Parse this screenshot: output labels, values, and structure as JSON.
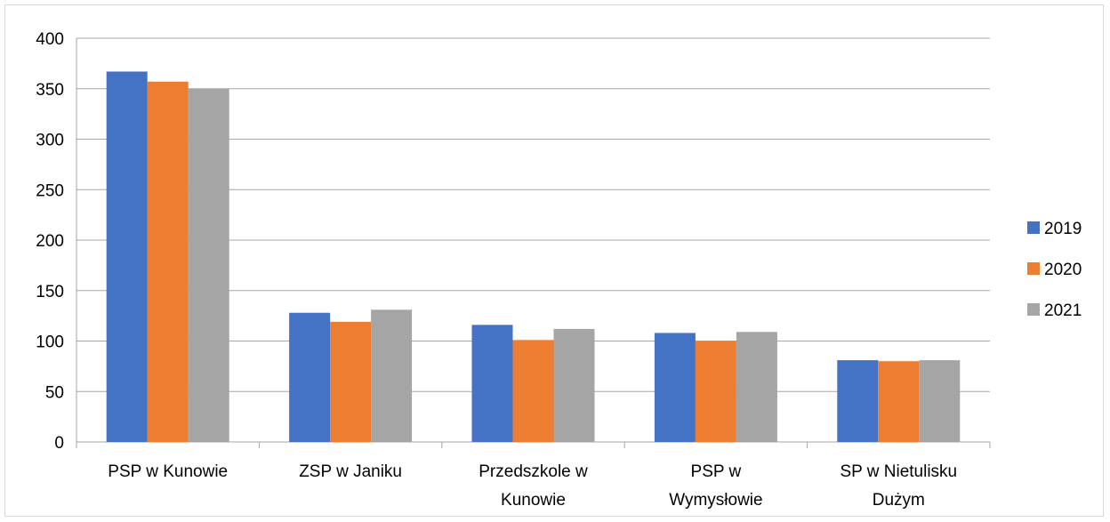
{
  "chart_data": {
    "type": "bar",
    "title": "",
    "xlabel": "",
    "ylabel": "",
    "ylim": [
      0,
      400
    ],
    "yticks": [
      0,
      50,
      100,
      150,
      200,
      250,
      300,
      350,
      400
    ],
    "grid": true,
    "legend_position": "right",
    "categories": [
      [
        "PSP w Kunowie"
      ],
      [
        "ZSP w Janiku"
      ],
      [
        "Przedszkole w",
        "Kunowie"
      ],
      [
        "PSP w",
        "Wymysłowie"
      ],
      [
        "SP w Nietulisku",
        "Dużym"
      ]
    ],
    "series": [
      {
        "name": "2019",
        "color": "#4472c4",
        "values": [
          367,
          128,
          116,
          108,
          81
        ]
      },
      {
        "name": "2020",
        "color": "#ed7d31",
        "values": [
          357,
          119,
          101,
          100,
          80
        ]
      },
      {
        "name": "2021",
        "color": "#a5a5a5",
        "values": [
          350,
          131,
          112,
          109,
          81
        ]
      }
    ]
  }
}
